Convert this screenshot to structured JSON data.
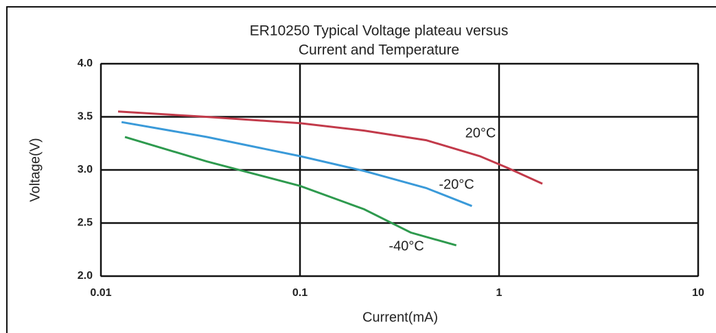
{
  "chart_data": {
    "type": "line",
    "title": [
      "ER10250 Typical Voltage plateau versus",
      "Current and Temperature"
    ],
    "x_label": "Current(mA)",
    "y_label": "Voltage(V)",
    "xscale": "log",
    "xlim": [
      0.01,
      10
    ],
    "xticks": [
      0.01,
      0.1,
      1,
      10
    ],
    "ylim": [
      2,
      4
    ],
    "yticks": [
      {
        "value": 2,
        "label": "2.0"
      },
      {
        "value": 2.5,
        "label": "2.5"
      },
      {
        "value": 3,
        "label": "3.0"
      },
      {
        "value": 3.5,
        "label": "3.5"
      },
      {
        "value": 4,
        "label": "4.0"
      }
    ],
    "grid": true,
    "series": [
      {
        "name": "20°C",
        "color": "#c23a4a",
        "x": [
          0.0122,
          0.0337,
          0.1,
          0.21,
          0.43,
          0.8,
          1.1,
          1.65
        ],
        "values": [
          3.55,
          3.5,
          3.44,
          3.37,
          3.28,
          3.13,
          3.02,
          2.87
        ]
      },
      {
        "name": "-20°C",
        "color": "#3a9ad9",
        "x": [
          0.0127,
          0.034,
          0.1,
          0.21,
          0.43,
          0.73
        ],
        "values": [
          3.45,
          3.31,
          3.13,
          2.99,
          2.83,
          2.66
        ]
      },
      {
        "name": "-40°C",
        "color": "#2e9a4e",
        "x": [
          0.0132,
          0.034,
          0.1,
          0.21,
          0.36,
          0.61
        ],
        "values": [
          3.31,
          3.08,
          2.85,
          2.63,
          2.41,
          2.29
        ]
      }
    ]
  }
}
